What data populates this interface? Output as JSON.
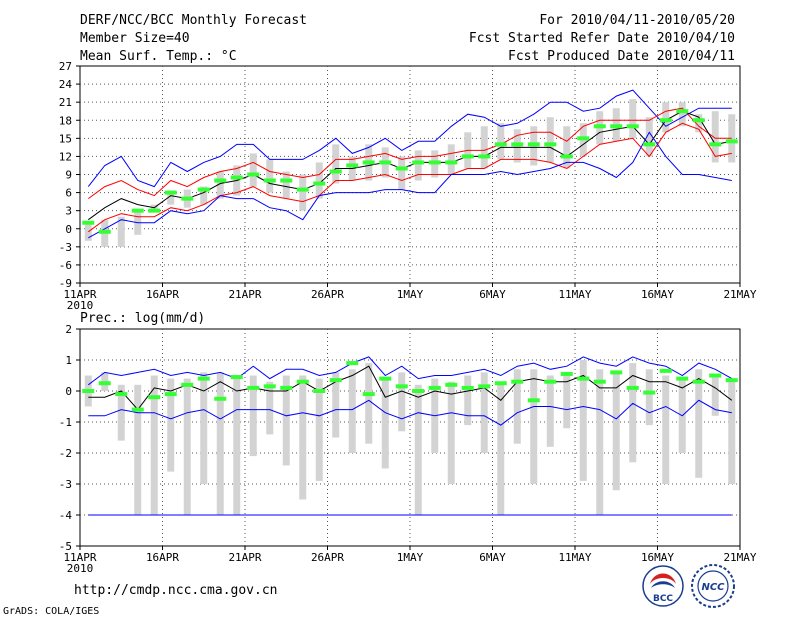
{
  "header": {
    "title": "DERF/NCC/BCC Monthly Forecast",
    "member": "Member Size=40",
    "variable": "Mean Surf. Temp.: °C",
    "period": "For 2010/04/11-2010/05/20",
    "refer": "Fcst Started Refer Date 2010/04/10",
    "produced": "Fcst Produced Date 2010/04/11"
  },
  "footer": {
    "url": "http://cmdp.ncc.cma.gov.cn",
    "credit": "GrADS: COLA/IGES",
    "logo_left": "BCC",
    "logo_right": "NCC"
  },
  "colors": {
    "envelope": "#0000ff",
    "spread": "#ff0000",
    "mean": "#000000",
    "obs": "#33ff33",
    "bar": "#d3d3d3"
  },
  "chart_data": [
    {
      "name": "temperature",
      "type": "line",
      "title": "Mean Surf. Temp.: °C",
      "ylim": [
        -9,
        27
      ],
      "yticks": [
        -9,
        -6,
        -3,
        0,
        3,
        6,
        9,
        12,
        15,
        18,
        21,
        24,
        27
      ],
      "xticks": [
        "11APR",
        "16APR",
        "21APR",
        "26APR",
        "1MAY",
        "6MAY",
        "11MAY",
        "16MAY",
        "21MAY"
      ],
      "xtick_year": "2010",
      "grid": true,
      "days": 40,
      "series": [
        {
          "name": "max",
          "values": [
            7,
            10.5,
            12,
            8,
            7,
            11,
            9.5,
            11,
            12,
            14,
            14,
            11.5,
            11.5,
            11.5,
            13,
            15,
            12.5,
            13.5,
            15,
            13,
            14.5,
            14.5,
            17,
            19,
            18.5,
            17,
            17.5,
            19,
            21,
            21,
            19.5,
            20,
            22,
            23,
            20,
            17,
            18.5,
            20,
            20,
            20
          ]
        },
        {
          "name": "upper",
          "values": [
            5,
            7,
            8,
            6.5,
            5.5,
            8,
            7,
            8.5,
            9.5,
            10,
            11,
            9.5,
            9,
            8.5,
            9,
            11.5,
            11.5,
            12,
            12.5,
            11.5,
            12,
            12,
            12.5,
            13,
            13,
            14,
            15.5,
            16,
            16,
            14.5,
            17,
            18,
            18,
            18,
            18,
            19.5,
            20,
            17,
            15,
            15
          ]
        },
        {
          "name": "mean",
          "values": [
            1.5,
            3.5,
            5,
            4,
            3.5,
            5.5,
            5,
            6,
            7.5,
            8,
            9,
            7.5,
            7,
            6.5,
            7.5,
            10,
            10,
            10.5,
            11,
            10,
            11,
            11,
            11,
            12,
            12,
            13.5,
            13.5,
            13.5,
            13.5,
            12,
            14,
            16,
            16.5,
            17,
            14,
            18,
            19.5,
            18.5,
            14,
            14.5
          ]
        },
        {
          "name": "lower",
          "values": [
            -0.5,
            1.5,
            2.5,
            2,
            2,
            3.5,
            3,
            4,
            5.5,
            6,
            7,
            5.5,
            5,
            4.5,
            5.5,
            8,
            8,
            8.5,
            9,
            8,
            9,
            9,
            9,
            10,
            10,
            11.5,
            11.5,
            11.5,
            11,
            10,
            12,
            14,
            14.5,
            15,
            12,
            16,
            17.5,
            16.5,
            12,
            12.5
          ]
        },
        {
          "name": "min",
          "values": [
            -1.5,
            0,
            1.5,
            1,
            1,
            3,
            2.5,
            3,
            5.5,
            5,
            5,
            3.5,
            3,
            1.5,
            5.5,
            6,
            6,
            6,
            6.5,
            6.5,
            6,
            6,
            9,
            9,
            9,
            9.5,
            9,
            9.5,
            10,
            11,
            11,
            10,
            8.5,
            11,
            16,
            12,
            9,
            9,
            8.5,
            8
          ]
        },
        {
          "name": "obs",
          "values": [
            1,
            -0.5,
            null,
            3,
            3,
            6,
            5,
            6.5,
            8,
            8.5,
            9,
            8,
            8,
            6.5,
            7.5,
            9.5,
            10.5,
            11,
            11,
            10,
            11,
            11,
            11,
            12,
            12,
            14,
            14,
            14,
            14,
            12,
            15,
            17,
            17,
            17,
            14,
            18,
            19.5,
            18,
            14,
            14.5
          ]
        }
      ],
      "bars_low": [
        -2,
        -3,
        -3,
        -1,
        3,
        4,
        3.5,
        4,
        5,
        5.5,
        7,
        6,
        5,
        3,
        5,
        7.5,
        8,
        8,
        8.5,
        6.5,
        8,
        8.5,
        9,
        10,
        10,
        11.5,
        11,
        10.5,
        11,
        10,
        12,
        14,
        14.5,
        15,
        12,
        16,
        17,
        16,
        11,
        11
      ],
      "bars_high": [
        1,
        1.5,
        2,
        3,
        4,
        6,
        6.5,
        7,
        9.5,
        10.5,
        12.5,
        11.5,
        9.5,
        9,
        11,
        14,
        12,
        14,
        13.5,
        12,
        13,
        13,
        14,
        16,
        17,
        17.5,
        16.5,
        17,
        18.5,
        17,
        17.5,
        19.5,
        20,
        21.5,
        18.5,
        21,
        21,
        19,
        19.5,
        19
      ]
    },
    {
      "name": "precipitation",
      "type": "line",
      "title": "Prec.: log(mm/d)",
      "ylim": [
        -5,
        2
      ],
      "yticks": [
        -5,
        -4,
        -3,
        -2,
        -1,
        0,
        1,
        2
      ],
      "xticks": [
        "11APR",
        "16APR",
        "21APR",
        "26APR",
        "1MAY",
        "6MAY",
        "11MAY",
        "16MAY",
        "21MAY"
      ],
      "xtick_year": "2010",
      "grid": true,
      "days": 40,
      "baseline": -4,
      "series": [
        {
          "name": "max",
          "values": [
            0.2,
            0.6,
            0.5,
            0.6,
            0.7,
            0.5,
            0.6,
            0.5,
            0.6,
            0.4,
            0.8,
            0.4,
            0.7,
            0.7,
            0.5,
            0.6,
            0.9,
            1.1,
            0.5,
            0.8,
            0.4,
            0.5,
            0.5,
            0.6,
            0.7,
            0.5,
            0.8,
            0.9,
            0.7,
            0.8,
            1.1,
            0.9,
            0.8,
            1.1,
            0.9,
            0.8,
            0.5,
            0.9,
            0.7,
            0.4
          ]
        },
        {
          "name": "mean",
          "values": [
            -0.2,
            -0.2,
            0,
            -0.6,
            0.1,
            0,
            0.2,
            0,
            0.3,
            0,
            0.1,
            0,
            0,
            0.3,
            0,
            0.3,
            0.5,
            0.8,
            -0.2,
            0,
            -0.2,
            0,
            -0.1,
            0,
            0.1,
            -0.3,
            0.3,
            0.4,
            0.3,
            0.3,
            0.5,
            0.1,
            0.1,
            0.5,
            0.3,
            0.3,
            0.1,
            0.4,
            0.1,
            -0.3
          ]
        },
        {
          "name": "min",
          "values": [
            -0.8,
            -0.8,
            -0.6,
            -0.7,
            -0.7,
            -0.9,
            -0.7,
            -0.6,
            -0.9,
            -0.6,
            -0.6,
            -0.6,
            -0.8,
            -0.7,
            -0.8,
            -0.6,
            -0.6,
            -0.3,
            -0.7,
            -0.9,
            -0.7,
            -0.8,
            -0.7,
            -0.8,
            -0.8,
            -1.1,
            -0.7,
            -0.5,
            -0.5,
            -0.6,
            -0.5,
            -0.6,
            -0.9,
            -0.4,
            -0.7,
            -0.5,
            -0.8,
            -0.3,
            -0.6,
            -0.7
          ]
        },
        {
          "name": "obs",
          "values": [
            0,
            0.25,
            -0.1,
            -0.6,
            -0.2,
            -0.1,
            0.2,
            0.4,
            -0.25,
            0.45,
            0.1,
            0.15,
            0.1,
            0.3,
            0,
            0.35,
            0.9,
            -0.1,
            0.4,
            0.15,
            0,
            0.1,
            0.2,
            0.1,
            0.15,
            0.25,
            0.3,
            -0.3,
            0.3,
            0.55,
            0.4,
            0.3,
            0.6,
            0.1,
            -0.05,
            0.65,
            0.4,
            0.3,
            0.5,
            0.35
          ]
        }
      ],
      "bars_low": [
        -0.5,
        0,
        -1.6,
        -4,
        -4,
        -2.6,
        -4,
        -3,
        -4,
        -4,
        -2.1,
        -1.4,
        -2.4,
        -3.5,
        -2.9,
        -1.5,
        -2,
        -1.7,
        -2.5,
        -1.3,
        -4,
        -2,
        -3,
        -1.1,
        -2,
        -4,
        -1.7,
        -3,
        -1.8,
        -1.2,
        -2.9,
        -4,
        -3.2,
        -2.3,
        -1.1,
        -3,
        -2,
        -2.8,
        -0.8,
        -3
      ],
      "bars_high": [
        0.5,
        0.6,
        0.2,
        0.2,
        0.5,
        0.4,
        0.4,
        0.6,
        0.6,
        0.5,
        0.5,
        0.3,
        0.5,
        0.5,
        0.4,
        0.6,
        0.7,
        0.9,
        0.4,
        0.6,
        0.2,
        0.4,
        0.3,
        0.5,
        0.6,
        0.3,
        0.7,
        0.7,
        0.5,
        0.6,
        1,
        0.7,
        0.6,
        0.9,
        0.7,
        0.5,
        0.4,
        0.7,
        0.5,
        0.3
      ]
    }
  ]
}
